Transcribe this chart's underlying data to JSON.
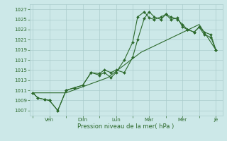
{
  "bg_color": "#cce8e8",
  "grid_color": "#aacccc",
  "line_color": "#2d6a2d",
  "xlabel": "Pression niveau de la mer( hPa )",
  "ylim": [
    1006,
    1028
  ],
  "yticks": [
    1007,
    1009,
    1011,
    1013,
    1015,
    1017,
    1019,
    1021,
    1023,
    1025,
    1027
  ],
  "x_tick_labels": [
    "",
    "Ven",
    "",
    "Dim",
    "",
    "Lun",
    "",
    "Mar",
    "",
    "Mer",
    "",
    "Je"
  ],
  "x_tick_positions": [
    0,
    1,
    2,
    3,
    4,
    5,
    6,
    7,
    8,
    9,
    10,
    11
  ],
  "series1_x": [
    0,
    0.3,
    0.7,
    1.0,
    1.5,
    2.0,
    2.5,
    3.0,
    3.5,
    4.0,
    4.3,
    4.7,
    5.0,
    5.5,
    6.0,
    6.3,
    6.7,
    7.0,
    7.3,
    7.7,
    8.0,
    8.3,
    8.7,
    9.0,
    9.3,
    9.7,
    10.0,
    10.3,
    10.7,
    11.0
  ],
  "series1_y": [
    1010.5,
    1009.5,
    1009.2,
    1009.0,
    1007.0,
    1011.0,
    1011.5,
    1012.0,
    1014.5,
    1014.0,
    1014.5,
    1013.5,
    1014.5,
    1017.0,
    1020.5,
    1025.5,
    1026.5,
    1025.3,
    1025.0,
    1025.5,
    1026.0,
    1025.0,
    1025.3,
    1023.5,
    1023.0,
    1022.5,
    1023.5,
    1022.0,
    1021.5,
    1019.0
  ],
  "series2_x": [
    0,
    0.3,
    0.7,
    1.0,
    1.5,
    2.0,
    2.5,
    3.0,
    3.5,
    4.0,
    4.3,
    4.7,
    5.0,
    5.5,
    6.0,
    6.3,
    6.7,
    7.0,
    7.3,
    7.7,
    8.0,
    8.3,
    8.7,
    9.0,
    9.3,
    9.7,
    10.0,
    10.3,
    10.7,
    11.0
  ],
  "series2_y": [
    1010.5,
    1009.5,
    1009.2,
    1009.0,
    1007.0,
    1011.0,
    1011.5,
    1012.0,
    1014.5,
    1014.3,
    1015.0,
    1014.5,
    1015.0,
    1014.5,
    1017.5,
    1021.0,
    1025.2,
    1026.5,
    1025.5,
    1025.0,
    1026.0,
    1025.5,
    1025.0,
    1024.0,
    1023.0,
    1022.5,
    1023.5,
    1022.5,
    1022.0,
    1019.0
  ],
  "series3_x": [
    0,
    2.0,
    4.5,
    6.5,
    10.0,
    11.0
  ],
  "series3_y": [
    1010.5,
    1010.5,
    1013.5,
    1018.5,
    1024.0,
    1019.0
  ],
  "figsize": [
    3.2,
    2.0
  ],
  "dpi": 100
}
